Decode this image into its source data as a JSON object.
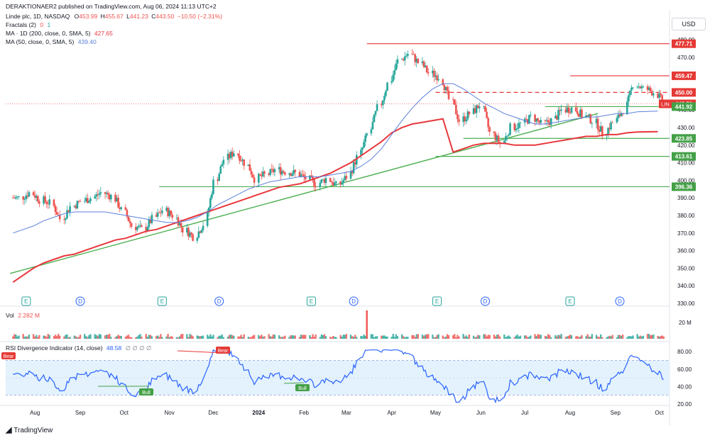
{
  "header": {
    "published": "DERAKTIONAER2 published on TradingView.com, Aug 06, 2024 11:13 UTC+2"
  },
  "currency_button": "USD",
  "legend": {
    "symbol": "Linde plc, 1D, NASDAQ",
    "ohlc": {
      "o_label": "O",
      "o": "453.99",
      "h_label": "H",
      "h": "455.67",
      "l_label": "L",
      "l": "441.23",
      "c_label": "C",
      "c": "443.50",
      "chg": "−10.50 (−2.31%)"
    },
    "fractals_label": "Fractals (2)",
    "fractals_values": [
      "0",
      "1"
    ],
    "ma200_label": "MA · 1D (200, close, 0, SMA, 5)",
    "ma200_value": "427.65",
    "ma50_label": "MA (50, close, 0, SMA, 5)",
    "ma50_value": "439.40"
  },
  "volume_pane": {
    "label": "Vol",
    "value": "2.282 M",
    "axis_label": "20 M"
  },
  "rsi_pane": {
    "label": "RSI Divergence Indicator (14, close)",
    "value": "48.58",
    "extra": "∅ ∅ ∅ ∅",
    "ticks": [
      "80.00",
      "60.00",
      "40.00",
      "20.00"
    ]
  },
  "watermark": "TradingView",
  "event_markers": {
    "earnings_letter": "E",
    "dividend_letter": "D"
  },
  "badges": {
    "bear": "Bear",
    "bull": "Bull"
  },
  "colors": {
    "up": "#26a69a",
    "down": "#ef5350",
    "ma200": "#e8373b",
    "ma50": "#5b7fdb",
    "rsi": "#2962ff",
    "green_line": "#4caf50",
    "red_line": "#e53935",
    "band": "#e3f2fd"
  },
  "chart_data": {
    "type": "candlestick",
    "title": "Linde plc, 1D, NASDAQ",
    "ylim": [
      330,
      480
    ],
    "y_ticks": [
      480,
      470,
      460,
      450,
      440,
      430,
      420,
      410,
      400,
      390,
      380,
      370,
      360,
      350,
      340,
      330
    ],
    "x_tick_labels": [
      "Aug",
      "Sep",
      "Oct",
      "Nov",
      "Dec",
      "2024",
      "Feb",
      "Mar",
      "Apr",
      "May",
      "Jun",
      "Jul",
      "Aug",
      "Sep",
      "Oct"
    ],
    "price_labels": [
      {
        "value": "477.71",
        "kind": "red"
      },
      {
        "value": "459.47",
        "kind": "red"
      },
      {
        "value": "450.00",
        "kind": "red"
      },
      {
        "value": "443.50",
        "kind": "last",
        "ticker": "LIN"
      },
      {
        "value": "441.92",
        "kind": "green"
      },
      {
        "value": "423.85",
        "kind": "green"
      },
      {
        "value": "413.61",
        "kind": "green"
      },
      {
        "value": "396.36",
        "kind": "green"
      }
    ],
    "horizontal_levels": [
      {
        "price": 477.71,
        "start_month": "2024-03-15",
        "style": "solid",
        "color": "red"
      },
      {
        "price": 459.47,
        "start_month": "2024-08-01",
        "style": "solid",
        "color": "red"
      },
      {
        "price": 450.0,
        "start_month": "2024-05-01",
        "style": "dashed",
        "color": "red"
      },
      {
        "price": 441.92,
        "start_month": "2024-07-15",
        "style": "solid",
        "color": "green"
      },
      {
        "price": 423.85,
        "start_month": "2024-05-20",
        "style": "solid",
        "color": "green"
      },
      {
        "price": 413.61,
        "start_month": "2024-05-01",
        "style": "solid",
        "color": "green"
      },
      {
        "price": 396.36,
        "start_month": "2023-10-25",
        "style": "solid",
        "color": "green"
      }
    ],
    "trendline": {
      "start": {
        "date": "2023-07-15",
        "price": 347
      },
      "end": {
        "date": "2024-08-20",
        "price": 438
      }
    },
    "series": [
      {
        "name": "Price (daily close, approx.)",
        "dates_start": "2023-07-17",
        "step_days": 7,
        "values": [
          390,
          393,
          389,
          387,
          378,
          385,
          388,
          390,
          393,
          391,
          383,
          374,
          372,
          378,
          383,
          380,
          372,
          368,
          375,
          399,
          412,
          416,
          410,
          401,
          403,
          406,
          405,
          404,
          401,
          398,
          401,
          397,
          402,
          413,
          426,
          441,
          455,
          468,
          472,
          467,
          461,
          459,
          446,
          434,
          438,
          443,
          427,
          421,
          430,
          432,
          436,
          432,
          434,
          440,
          441,
          437,
          434,
          427,
          433,
          440,
          455,
          452,
          450,
          443.5
        ]
      },
      {
        "name": "MA · 1D (200, close, 0, SMA, 5)",
        "dates_start": "2023-07-17",
        "step_days": 7,
        "values": [
          342,
          346,
          350,
          353,
          355,
          357,
          358,
          360,
          362,
          364,
          366,
          367,
          369,
          371,
          372,
          374,
          376,
          378,
          380,
          382,
          384,
          386,
          388,
          390,
          392,
          394,
          396,
          397,
          398,
          400,
          402,
          404,
          407,
          410,
          414,
          418,
          422,
          427,
          430,
          432,
          433,
          434,
          435,
          416,
          418,
          420,
          421,
          421,
          421,
          420,
          420,
          420,
          421,
          422,
          423,
          424,
          425,
          425,
          426,
          426,
          427,
          427.5,
          427.6,
          427.65
        ]
      },
      {
        "name": "MA (50, close, 0, SMA, 5)",
        "dates_start": "2023-07-17",
        "step_days": 7,
        "values": [
          370,
          372,
          374,
          377,
          379,
          381,
          382,
          382,
          382,
          382,
          381,
          380,
          379,
          378,
          377,
          376,
          376,
          377,
          379,
          382,
          386,
          389,
          392,
          395,
          397,
          399,
          400,
          401,
          402,
          402,
          402,
          403,
          404,
          405,
          408,
          412,
          418,
          426,
          434,
          441,
          447,
          452,
          455,
          455,
          452,
          448,
          444,
          441,
          438,
          436,
          434,
          432,
          432,
          433,
          434,
          435,
          436,
          436,
          437,
          438,
          438,
          439,
          439.2,
          439.4
        ]
      }
    ],
    "rsi": {
      "ylim": [
        20,
        85
      ],
      "band": [
        30,
        70
      ],
      "mid": 50,
      "last": 48.58
    }
  }
}
